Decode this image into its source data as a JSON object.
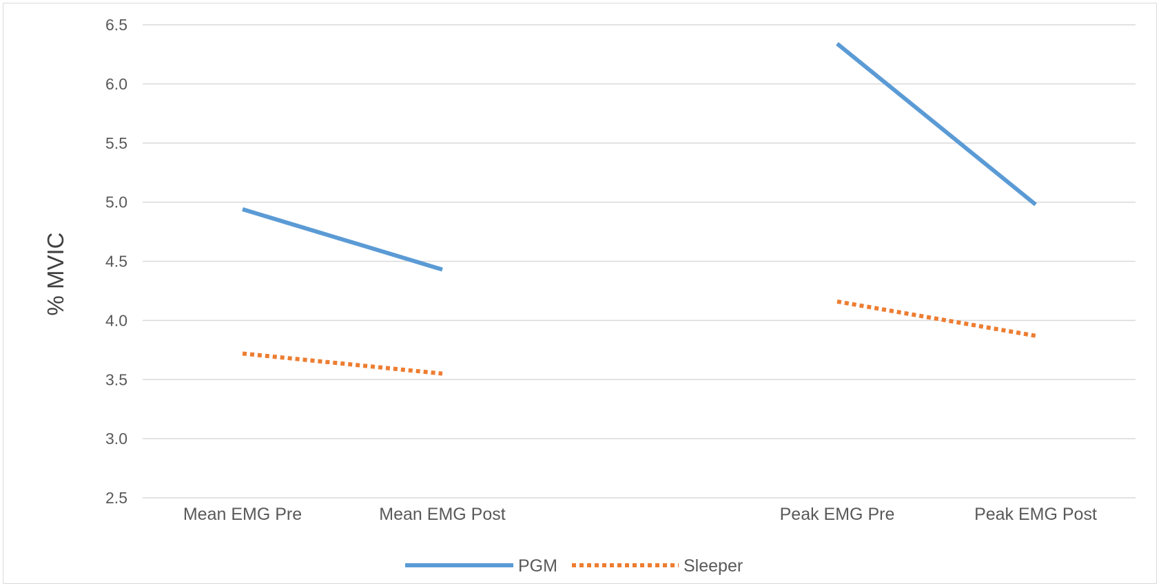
{
  "chart_data": {
    "type": "line",
    "categories": [
      "Mean EMG Pre",
      "Mean EMG Post",
      "Peak EMG Pre",
      "Peak EMG Post"
    ],
    "groups": [
      [
        0,
        1
      ],
      [
        2,
        3
      ]
    ],
    "series": [
      {
        "name": "PGM",
        "values": [
          4.94,
          4.43,
          6.34,
          4.98
        ],
        "color": "#5b9bd5",
        "style": "solid"
      },
      {
        "name": "Sleeper",
        "values": [
          3.72,
          3.55,
          4.16,
          3.87
        ],
        "color": "#ed7d31",
        "style": "dotted"
      }
    ],
    "title": "",
    "xlabel": "",
    "ylabel": "% MVIC",
    "ylim": [
      2.5,
      6.5
    ],
    "yticks": [
      "2.5",
      "3.0",
      "3.5",
      "4.0",
      "4.5",
      "5.0",
      "5.5",
      "6.0",
      "6.5"
    ],
    "grid": true,
    "legend_position": "bottom",
    "gridline_color": "#d9d9d9"
  }
}
